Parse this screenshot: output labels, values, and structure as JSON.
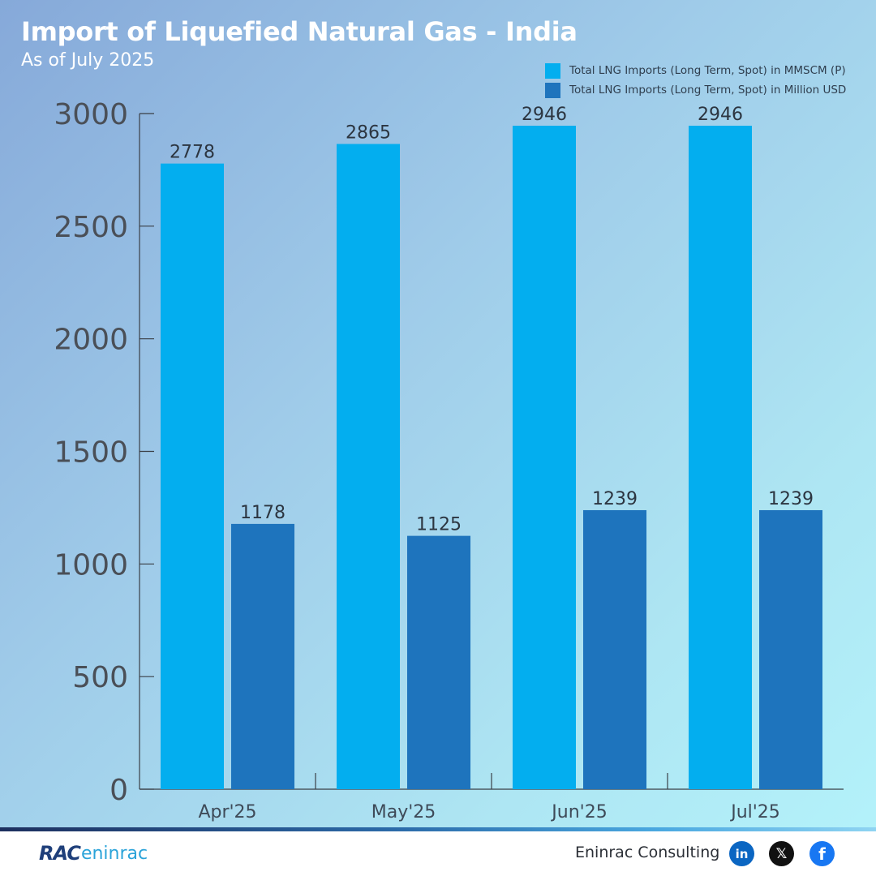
{
  "header": {
    "title": "Import of Liquefied Natural Gas - India",
    "subtitle": "As of July 2025"
  },
  "footer": {
    "logo_mark": "RAC",
    "logo_word": "eninrac",
    "company": "Eninrac Consulting",
    "social": [
      {
        "name": "linkedin-icon",
        "glyph": "in"
      },
      {
        "name": "x-icon",
        "glyph": "𝕏"
      },
      {
        "name": "facebook-icon",
        "glyph": "f"
      }
    ]
  },
  "chart_data": {
    "type": "bar",
    "title": "Import of Liquefied Natural Gas - India",
    "subtitle": "As of July 2025",
    "categories": [
      "Apr'25",
      "May'25",
      "Jun'25",
      "Jul'25"
    ],
    "series": [
      {
        "name": "Total LNG Imports (Long Term, Spot) in MMSCM (P)",
        "values": [
          2778,
          2865,
          2946,
          2946
        ],
        "color": "#03aeef"
      },
      {
        "name": "Total LNG Imports (Long Term, Spot) in Million USD",
        "values": [
          1178,
          1125,
          1239,
          1239
        ],
        "color": "#1e74bd"
      }
    ],
    "ylim": [
      0,
      3000
    ],
    "yticks": [
      0,
      500,
      1000,
      1500,
      2000,
      2500,
      3000
    ],
    "grid": false,
    "legend_position": "top-right",
    "data_labels": true
  }
}
